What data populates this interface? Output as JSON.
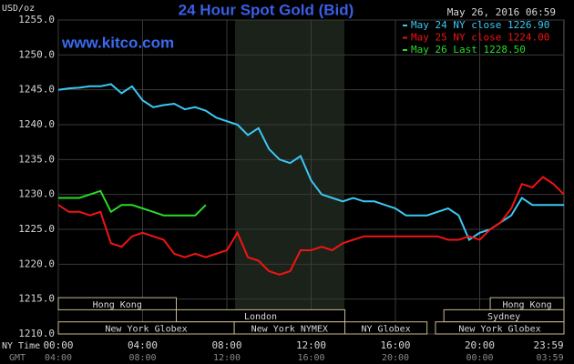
{
  "chart_data": {
    "type": "line",
    "title": "24 Hour Spot Gold (Bid)",
    "website": "www.kitco.com",
    "timestamp": "May 26, 2016 06:59",
    "y_unit": "USD/oz",
    "x_row_label": "NY Time",
    "x2_row_label": "GMT",
    "xlim": [
      0,
      24
    ],
    "ylim": [
      1210,
      1255
    ],
    "yticks": [
      {
        "value": 1210,
        "label": "1210.0"
      },
      {
        "value": 1215,
        "label": "1215.0"
      },
      {
        "value": 1220,
        "label": "1220.0"
      },
      {
        "value": 1225,
        "label": "1225.0"
      },
      {
        "value": 1230,
        "label": "1230.0"
      },
      {
        "value": 1235,
        "label": "1235.0"
      },
      {
        "value": 1240,
        "label": "1240.0"
      },
      {
        "value": 1245,
        "label": "1245.0"
      },
      {
        "value": 1250,
        "label": "1250.0"
      },
      {
        "value": 1255,
        "label": "1255.0"
      }
    ],
    "xticks": [
      {
        "value": 0,
        "label": "00:00"
      },
      {
        "value": 4,
        "label": "04:00"
      },
      {
        "value": 8,
        "label": "08:00"
      },
      {
        "value": 12,
        "label": "12:00"
      },
      {
        "value": 16,
        "label": "16:00"
      },
      {
        "value": 20,
        "label": "20:00"
      },
      {
        "value": 23.983,
        "label": "23:59"
      }
    ],
    "x2ticks": [
      {
        "value": 0,
        "label": "04:00"
      },
      {
        "value": 4,
        "label": "08:00"
      },
      {
        "value": 8,
        "label": "12:00"
      },
      {
        "value": 12,
        "label": "16:00"
      },
      {
        "value": 16,
        "label": "20:00"
      },
      {
        "value": 20,
        "label": "00:00"
      },
      {
        "value": 23.983,
        "label": "03:59"
      }
    ],
    "grid": true,
    "x": [
      0,
      0.5,
      1,
      1.5,
      2,
      2.5,
      3,
      3.5,
      4,
      4.5,
      5,
      5.5,
      6,
      6.5,
      7,
      7.5,
      8,
      8.5,
      9,
      9.5,
      10,
      10.5,
      11,
      11.5,
      12,
      12.5,
      13,
      13.5,
      14,
      14.5,
      15,
      15.5,
      16,
      16.5,
      17,
      17.5,
      18,
      18.5,
      19,
      19.5,
      20,
      20.5,
      21,
      21.5,
      22,
      22.5,
      23,
      23.5,
      24
    ],
    "series": [
      {
        "name": "May 24 NY close 1226.90",
        "color": "#3cc8f5",
        "values": [
          1245,
          1245.2,
          1245.3,
          1245.5,
          1245.5,
          1245.8,
          1244.5,
          1245.5,
          1243.5,
          1242.5,
          1242.8,
          1243,
          1242.2,
          1242.5,
          1242,
          1241,
          1240.5,
          1240,
          1238.5,
          1239.5,
          1236.5,
          1235,
          1234.5,
          1235.5,
          1232,
          1230,
          1229.5,
          1229,
          1229.5,
          1229,
          1229,
          1228.5,
          1228,
          1227,
          1227,
          1227,
          1227.5,
          1228,
          1227,
          1223.5,
          1224.5,
          1225,
          1226,
          1227,
          1229.5,
          1228.5,
          1228.5,
          1228.5,
          1228.5
        ]
      },
      {
        "name": "May 25 NY close 1224.00",
        "color": "#f01414",
        "values": [
          1228.5,
          1227.5,
          1227.5,
          1227,
          1227.5,
          1223,
          1222.5,
          1224,
          1224.5,
          1224,
          1223.5,
          1221.5,
          1221,
          1221.5,
          1221,
          1221.5,
          1222,
          1224.5,
          1221,
          1220.5,
          1219,
          1218.5,
          1219,
          1222,
          1222,
          1222.5,
          1222,
          1223,
          1223.5,
          1224,
          1224,
          1224,
          1224,
          1224,
          1224,
          1224,
          1224,
          1223.5,
          1223.5,
          1224,
          1223.5,
          1225,
          1226,
          1228,
          1231.5,
          1231,
          1232.5,
          1231.5,
          1230
        ]
      },
      {
        "name": "May 26 Last 1228.50",
        "color": "#28dc28",
        "values": [
          1229.5,
          1229.5,
          1229.5,
          1230,
          1230.5,
          1227.5,
          1228.5,
          1228.5,
          1228,
          1227.5,
          1227,
          1227,
          1227,
          1227,
          1228.5,
          null,
          null,
          null,
          null,
          null,
          null,
          null,
          null,
          null,
          null,
          null,
          null,
          null,
          null,
          null,
          null,
          null,
          null,
          null,
          null,
          null,
          null,
          null,
          null,
          null,
          null,
          null,
          null,
          null,
          null,
          null,
          null,
          null,
          null
        ]
      }
    ],
    "session_rows": [
      [
        {
          "label": "Hong Kong",
          "start": 0,
          "end": 5.6
        },
        {
          "label": "Hong Kong",
          "start": 20.5,
          "end": 24
        }
      ],
      [
        {
          "label": "London",
          "start": 5.6,
          "end": 13.6
        },
        {
          "label": "Sydney",
          "start": 18.3,
          "end": 24
        }
      ],
      [
        {
          "label": "New York Globex",
          "start": 0,
          "end": 8.35
        },
        {
          "label": "New York NYMEX",
          "start": 8.35,
          "end": 13.6
        },
        {
          "label": "NY Globex",
          "start": 13.6,
          "end": 17.5
        },
        {
          "label": "New York Globex",
          "start": 17.9,
          "end": 24
        }
      ]
    ]
  }
}
